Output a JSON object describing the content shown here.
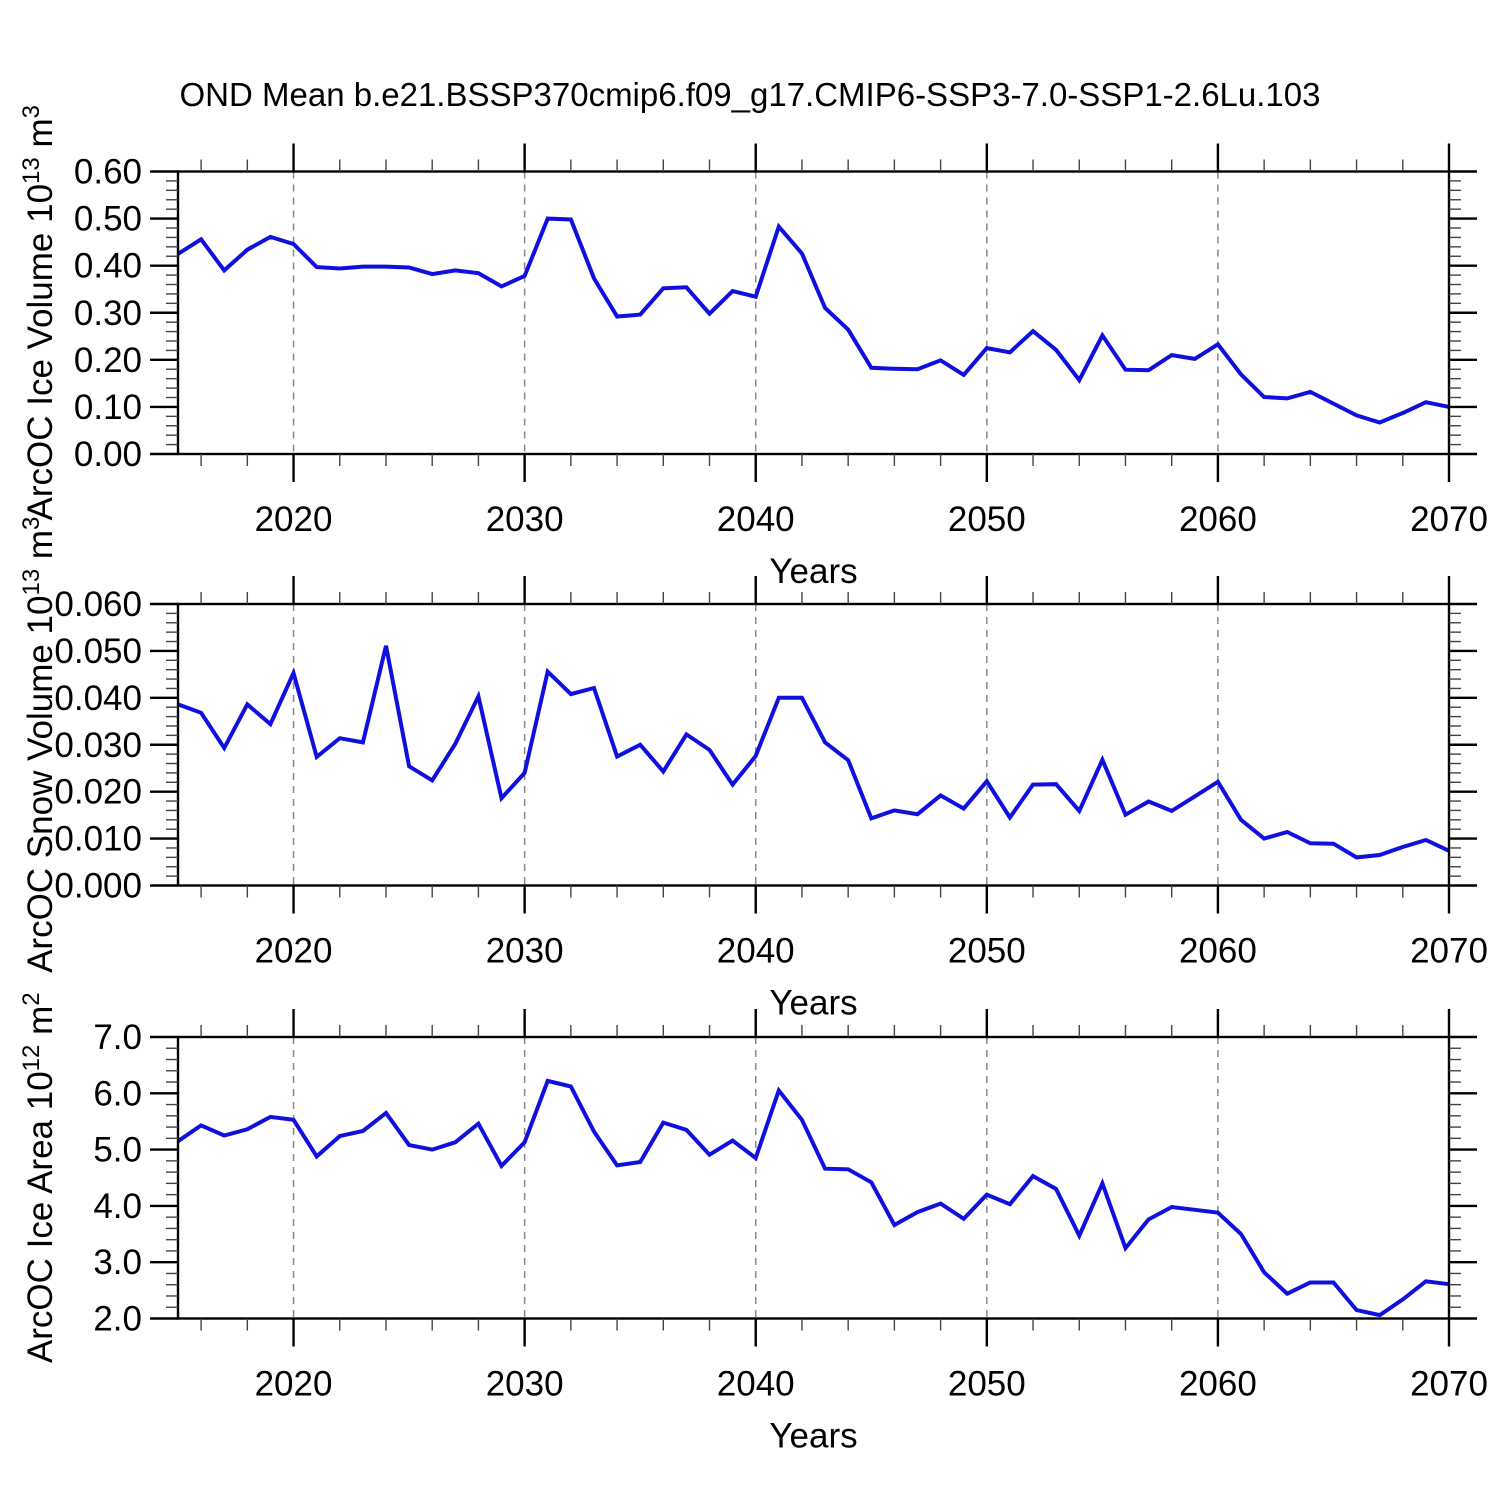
{
  "title": "OND Mean b.e21.BSSP370cmip6.f09_g17.CMIP6-SSP3-7.0-SSP1-2.6Lu.103",
  "style": {
    "line_color": "#0f0fe0",
    "axis_color": "#000000",
    "minor_tick_color": "#444444",
    "grid_color": "#888888",
    "background": "#ffffff"
  },
  "years": [
    2015,
    2016,
    2017,
    2018,
    2019,
    2020,
    2021,
    2022,
    2023,
    2024,
    2025,
    2026,
    2027,
    2028,
    2029,
    2030,
    2031,
    2032,
    2033,
    2034,
    2035,
    2036,
    2037,
    2038,
    2039,
    2040,
    2041,
    2042,
    2043,
    2044,
    2045,
    2046,
    2047,
    2048,
    2049,
    2050,
    2051,
    2052,
    2053,
    2054,
    2055,
    2056,
    2057,
    2058,
    2059,
    2060,
    2061,
    2062,
    2063,
    2064,
    2065,
    2066,
    2067,
    2068,
    2069,
    2070
  ],
  "chart_data": [
    {
      "type": "line",
      "panel_name": "ice-volume-panel",
      "series_name": "ice-volume-line",
      "ylabel": "ArcOC Ice Volume 10¹³ m³",
      "ylabel_parts": [
        {
          "t": "ArcOC Ice Volume 10"
        },
        {
          "t": "13",
          "sup": true
        },
        {
          "t": " m"
        },
        {
          "t": "3",
          "sup": true
        }
      ],
      "xlabel": "Years",
      "xlim": [
        2015,
        2070
      ],
      "ylim": [
        0.0,
        0.6
      ],
      "ytick_step": 0.1,
      "ytick_decimals": 2,
      "xticks": [
        2020,
        2030,
        2040,
        2050,
        2060,
        2070
      ],
      "grid_x": [
        2020,
        2030,
        2040,
        2050,
        2060
      ],
      "grid": true,
      "legend": "none",
      "values": [
        0.425,
        0.456,
        0.39,
        0.434,
        0.461,
        0.446,
        0.397,
        0.394,
        0.398,
        0.398,
        0.396,
        0.382,
        0.39,
        0.384,
        0.356,
        0.378,
        0.5,
        0.498,
        0.373,
        0.292,
        0.296,
        0.352,
        0.354,
        0.298,
        0.346,
        0.334,
        0.483,
        0.426,
        0.31,
        0.264,
        0.183,
        0.181,
        0.18,
        0.199,
        0.168,
        0.225,
        0.216,
        0.261,
        0.221,
        0.157,
        0.252,
        0.179,
        0.178,
        0.21,
        0.202,
        0.233,
        0.169,
        0.121,
        0.118,
        0.132,
        0.107,
        0.082,
        0.067,
        0.087,
        0.11,
        0.1
      ]
    },
    {
      "type": "line",
      "panel_name": "snow-volume-panel",
      "series_name": "snow-volume-line",
      "ylabel": "ArcOC Snow Volume 10¹³ m³",
      "ylabel_parts": [
        {
          "t": "ArcOC Snow Volume 10"
        },
        {
          "t": "13",
          "sup": true
        },
        {
          "t": " m"
        },
        {
          "t": "3",
          "sup": true
        }
      ],
      "xlabel": "Years",
      "xlim": [
        2015,
        2070
      ],
      "ylim": [
        0.0,
        0.06
      ],
      "ytick_step": 0.01,
      "ytick_decimals": 3,
      "xticks": [
        2020,
        2030,
        2040,
        2050,
        2060,
        2070
      ],
      "grid_x": [
        2020,
        2030,
        2040,
        2050,
        2060
      ],
      "grid": true,
      "legend": "none",
      "values": [
        0.0386,
        0.0368,
        0.0293,
        0.0386,
        0.0344,
        0.0453,
        0.0274,
        0.0314,
        0.0305,
        0.0511,
        0.0254,
        0.0224,
        0.0302,
        0.0403,
        0.0186,
        0.024,
        0.0456,
        0.0408,
        0.0421,
        0.0275,
        0.03,
        0.0243,
        0.0322,
        0.0289,
        0.0215,
        0.0276,
        0.04,
        0.04,
        0.0305,
        0.0267,
        0.0143,
        0.016,
        0.0152,
        0.0192,
        0.0164,
        0.0222,
        0.0145,
        0.0215,
        0.0216,
        0.0159,
        0.0268,
        0.0151,
        0.0179,
        0.0159,
        0.019,
        0.0221,
        0.014,
        0.01,
        0.0114,
        0.009,
        0.0089,
        0.006,
        0.0065,
        0.0082,
        0.0097,
        0.0074
      ]
    },
    {
      "type": "line",
      "panel_name": "ice-area-panel",
      "series_name": "ice-area-line",
      "ylabel": "ArcOC Ice Area 10¹² m²",
      "ylabel_parts": [
        {
          "t": "ArcOC Ice Area 10"
        },
        {
          "t": "12",
          "sup": true
        },
        {
          "t": " m"
        },
        {
          "t": "2",
          "sup": true
        }
      ],
      "xlabel": "Years",
      "xlim": [
        2015,
        2070
      ],
      "ylim": [
        2.0,
        7.0
      ],
      "ytick_step": 1.0,
      "ytick_decimals": 1,
      "xticks": [
        2020,
        2030,
        2040,
        2050,
        2060,
        2070
      ],
      "grid_x": [
        2020,
        2030,
        2040,
        2050,
        2060
      ],
      "grid": true,
      "legend": "none",
      "values": [
        5.15,
        5.43,
        5.25,
        5.36,
        5.58,
        5.53,
        4.88,
        5.24,
        5.33,
        5.65,
        5.08,
        5.0,
        5.13,
        5.46,
        4.71,
        5.13,
        6.22,
        6.12,
        5.32,
        4.72,
        4.78,
        5.48,
        5.35,
        4.91,
        5.16,
        4.85,
        6.05,
        5.53,
        4.66,
        4.65,
        4.42,
        3.66,
        3.89,
        4.04,
        3.77,
        4.2,
        4.03,
        4.53,
        4.3,
        3.47,
        4.4,
        3.25,
        3.76,
        3.98,
        3.93,
        3.88,
        3.5,
        2.82,
        2.44,
        2.64,
        2.64,
        2.15,
        2.06,
        2.34,
        2.66,
        2.61
      ]
    }
  ]
}
